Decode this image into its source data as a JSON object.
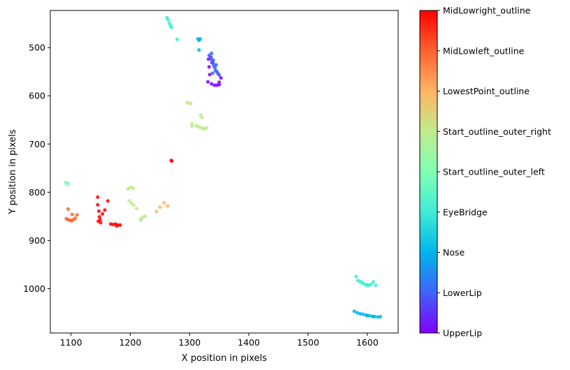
{
  "chart_data": {
    "type": "scatter",
    "xlabel": "X position in pixels",
    "ylabel": "Y position in pixels",
    "xlim": [
      1065,
      1652
    ],
    "ylim": [
      1092,
      423
    ],
    "y_inverted": true,
    "xticks": [
      1100,
      1200,
      1300,
      1400,
      1500,
      1600
    ],
    "yticks": [
      500,
      600,
      700,
      800,
      900,
      1000
    ],
    "grid": false,
    "colorbar": {
      "colormap": "rainbow",
      "colors": [
        "#8000ff",
        "#4062fa",
        "#00b5eb",
        "#40ecd4",
        "#80ffb4",
        "#c0eb8d",
        "#ffb462",
        "#ff6230",
        "#ff0000"
      ],
      "labels": [
        "UpperLip",
        "LowerLip",
        "Nose",
        "EyeBridge",
        "Start_outline_outer_left",
        "Start_outline_outer_right",
        "LowestPoint_outline",
        "MidLowleft_outline",
        "MidLowright_outline"
      ]
    },
    "series": [
      {
        "name": "UpperLip",
        "color": "#8000ff",
        "points": [
          [
            1332,
            524
          ],
          [
            1333,
            540
          ],
          [
            1334,
            556
          ],
          [
            1331,
            571
          ],
          [
            1337,
            575
          ],
          [
            1342,
            578
          ],
          [
            1346,
            578
          ],
          [
            1350,
            577
          ],
          [
            1353,
            563
          ],
          [
            1350,
            572
          ],
          [
            1338,
            531
          ],
          [
            1336,
            520
          ]
        ]
      },
      {
        "name": "LowerLip",
        "color": "#4062fa",
        "points": [
          [
            1333,
            516
          ],
          [
            1336,
            522
          ],
          [
            1338,
            528
          ],
          [
            1340,
            533
          ],
          [
            1341,
            538
          ],
          [
            1343,
            543
          ],
          [
            1344,
            548
          ],
          [
            1346,
            550
          ],
          [
            1348,
            554
          ],
          [
            1350,
            557
          ],
          [
            1339,
            553
          ],
          [
            1337,
            512
          ],
          [
            1340,
            526
          ],
          [
            1345,
            536
          ]
        ]
      },
      {
        "name": "Nose",
        "color": "#00b5eb",
        "points": [
          [
            1314,
            482
          ],
          [
            1316,
            485
          ],
          [
            1318,
            482
          ],
          [
            1316,
            505
          ],
          [
            1578,
            1047
          ],
          [
            1583,
            1050
          ],
          [
            1588,
            1052
          ],
          [
            1593,
            1053
          ],
          [
            1598,
            1055
          ],
          [
            1603,
            1056
          ],
          [
            1608,
            1057
          ],
          [
            1613,
            1058
          ],
          [
            1618,
            1059
          ],
          [
            1622,
            1058
          ],
          [
            1600,
            1056
          ],
          [
            1610,
            1058
          ]
        ]
      },
      {
        "name": "EyeBridge",
        "color": "#40ecd4",
        "points": [
          [
            1262,
            438
          ],
          [
            1264,
            443
          ],
          [
            1266,
            450
          ],
          [
            1268,
            455
          ],
          [
            1270,
            458
          ],
          [
            1279,
            483
          ],
          [
            1581,
            975
          ],
          [
            1584,
            983
          ],
          [
            1587,
            985
          ],
          [
            1590,
            987
          ],
          [
            1593,
            989
          ],
          [
            1596,
            991
          ],
          [
            1599,
            993
          ],
          [
            1602,
            993
          ],
          [
            1606,
            991
          ],
          [
            1610,
            986
          ],
          [
            1614,
            993
          ],
          [
            1600,
            992
          ]
        ]
      },
      {
        "name": "Start_outline_outer_left",
        "color": "#80ffb4",
        "points": [
          [
            1091,
            780
          ],
          [
            1093,
            782
          ],
          [
            1095,
            782
          ]
        ]
      },
      {
        "name": "Start_outline_outer_right",
        "color": "#c0eb8d",
        "points": [
          [
            1296,
            614
          ],
          [
            1299,
            615
          ],
          [
            1302,
            616
          ],
          [
            1304,
            658
          ],
          [
            1304,
            664
          ],
          [
            1311,
            662
          ],
          [
            1315,
            664
          ],
          [
            1319,
            666
          ],
          [
            1322,
            667
          ],
          [
            1325,
            669
          ],
          [
            1329,
            666
          ],
          [
            1319,
            640
          ],
          [
            1321,
            645
          ],
          [
            1196,
            793
          ],
          [
            1199,
            791
          ],
          [
            1202,
            790
          ],
          [
            1205,
            792
          ],
          [
            1198,
            818
          ],
          [
            1202,
            823
          ],
          [
            1206,
            827
          ],
          [
            1211,
            834
          ],
          [
            1217,
            856
          ],
          [
            1221,
            852
          ],
          [
            1225,
            850
          ],
          [
            1218,
            858
          ]
        ]
      },
      {
        "name": "LowestPoint_outline",
        "color": "#ffb462",
        "points": [
          [
            1244,
            840
          ],
          [
            1250,
            831
          ],
          [
            1257,
            822
          ],
          [
            1263,
            828
          ]
        ]
      },
      {
        "name": "MidLowleft_outline",
        "color": "#ff6230",
        "points": [
          [
            1092,
            855
          ],
          [
            1095,
            857
          ],
          [
            1098,
            858
          ],
          [
            1101,
            859
          ],
          [
            1104,
            857
          ],
          [
            1107,
            854
          ],
          [
            1102,
            846
          ],
          [
            1110,
            847
          ],
          [
            1095,
            835
          ]
        ]
      },
      {
        "name": "MidLowright_outline",
        "color": "#ff0000",
        "points": [
          [
            1145,
            810
          ],
          [
            1145,
            826
          ],
          [
            1147,
            839
          ],
          [
            1148,
            851
          ],
          [
            1149,
            857
          ],
          [
            1150,
            863
          ],
          [
            1146,
            860
          ],
          [
            1153,
            845
          ],
          [
            1157,
            837
          ],
          [
            1162,
            818
          ],
          [
            1167,
            866
          ],
          [
            1171,
            867
          ],
          [
            1175,
            866
          ],
          [
            1179,
            868
          ],
          [
            1183,
            868
          ],
          [
            1177,
            870
          ],
          [
            1269,
            734
          ],
          [
            1270,
            735
          ]
        ]
      }
    ]
  }
}
